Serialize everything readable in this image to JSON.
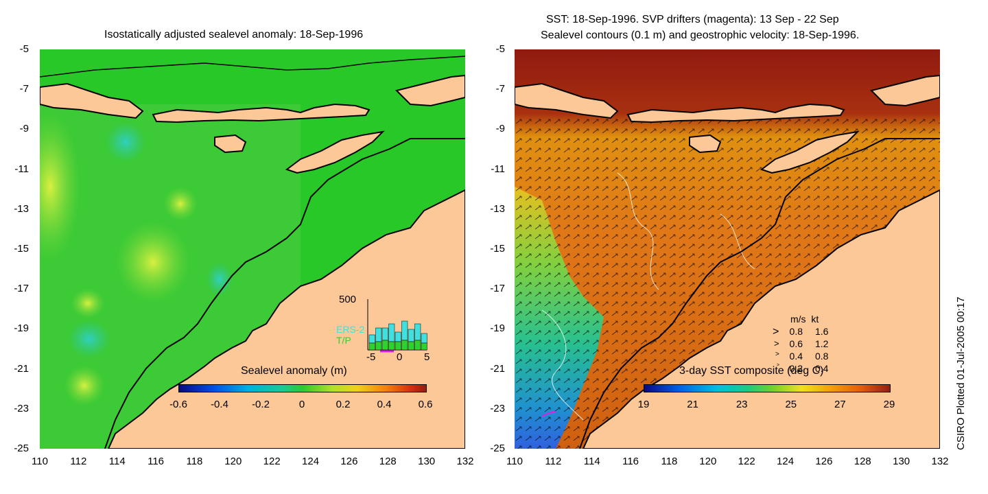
{
  "left_panel": {
    "title": "Isostatically adjusted sealevel anomaly: 18-Sep-1996",
    "colorbar": {
      "label": "Sealevel anomaly (m)",
      "ticks": [
        "-0.6",
        "-0.4",
        "-0.2",
        "0",
        "0.2",
        "0.4",
        "0.6"
      ],
      "range": [
        -0.6,
        0.6
      ]
    },
    "histogram": {
      "ymax_label": "500",
      "series": [
        "ERS-2",
        "T/P"
      ],
      "series_colors": {
        "ERS-2": "#40e0e0",
        "T/P": "#30d030"
      },
      "x_ticks": [
        "-5",
        "0",
        "5"
      ]
    }
  },
  "right_panel": {
    "title_line1": "SST: 18-Sep-1996. SVP drifters (magenta): 13 Sep - 22 Sep",
    "title_line2": "Sealevel contours (0.1 m) and geostrophic velocity: 18-Sep-1996.",
    "colorbar": {
      "label": "3-day SST composite (deg C)",
      "ticks": [
        "19",
        "21",
        "23",
        "25",
        "27",
        "29"
      ],
      "range": [
        19,
        29
      ]
    },
    "velocity_legend": {
      "header": "m/s  kt",
      "rows": [
        {
          "ms": "0.8",
          "kt": "1.6"
        },
        {
          "ms": "0.6",
          "kt": "1.2"
        },
        {
          "ms": "0.4",
          "kt": "0.8"
        },
        {
          "ms": "0.2",
          "kt": "0.4"
        }
      ]
    }
  },
  "axes": {
    "y_ticks": [
      "-5",
      "-7",
      "-9",
      "-11",
      "-13",
      "-15",
      "-17",
      "-19",
      "-21",
      "-23",
      "-25"
    ],
    "x_ticks": [
      "110",
      "112",
      "114",
      "116",
      "118",
      "120",
      "122",
      "124",
      "126",
      "128",
      "130",
      "132"
    ],
    "lat_range": [
      -25,
      -5
    ],
    "lon_range": [
      110,
      132
    ]
  },
  "credit": "CSIRO Plotted 01-Jul-2005 00:17",
  "colors": {
    "land": "#fcc898",
    "sla_ocean": "#28c828",
    "sst_warm": "#d06010",
    "sst_hot": "#901a10",
    "sst_cool": "#28c090"
  }
}
